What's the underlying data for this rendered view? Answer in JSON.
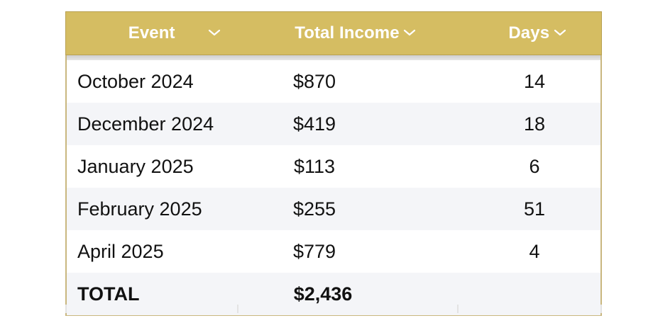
{
  "table": {
    "columns": [
      {
        "label": "Event",
        "sort_icon": "chevron-down-icon"
      },
      {
        "label": "Total Income",
        "sort_icon": "chevron-down-icon"
      },
      {
        "label": "Days",
        "sort_icon": "chevron-down-icon"
      }
    ],
    "rows": [
      {
        "event": "October 2024",
        "income": "$870",
        "days": "14"
      },
      {
        "event": "December 2024",
        "income": "$419",
        "days": "18"
      },
      {
        "event": "January 2025",
        "income": "$113",
        "days": "6"
      },
      {
        "event": "February 2025",
        "income": "$255",
        "days": "51"
      },
      {
        "event": "April 2025",
        "income": "$779",
        "days": "4"
      }
    ],
    "total": {
      "label": "TOTAL",
      "income": "$2,436",
      "days": ""
    }
  },
  "colors": {
    "header_bg": "#d5bd62",
    "header_text": "#ffffff",
    "border": "#c9b77f",
    "alt_row": "#f4f5f8"
  }
}
